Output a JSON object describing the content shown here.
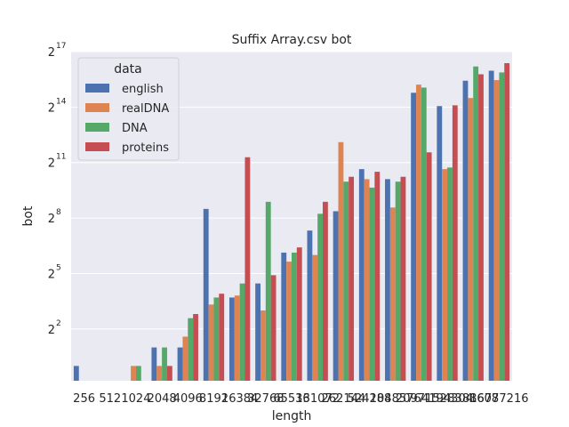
{
  "chart_data": {
    "type": "bar",
    "title": "Suffix Array.csv bot",
    "xlabel": "length",
    "ylabel": "bot",
    "yscale": "log2",
    "ylim_log2": [
      -0.8,
      17
    ],
    "yticks": [
      {
        "base": "2",
        "exp": "2",
        "value": 4
      },
      {
        "base": "2",
        "exp": "5",
        "value": 32
      },
      {
        "base": "2",
        "exp": "8",
        "value": 256
      },
      {
        "base": "2",
        "exp": "11",
        "value": 2048
      },
      {
        "base": "2",
        "exp": "14",
        "value": 16384
      },
      {
        "base": "2",
        "exp": "17",
        "value": 131072
      }
    ],
    "categories": [
      "256",
      "512",
      "1024",
      "2048",
      "4096",
      "8192",
      "16384",
      "32768",
      "65536",
      "131072",
      "262144",
      "524288",
      "1048576",
      "2097152",
      "4194304",
      "8388608",
      "16777216"
    ],
    "legend": {
      "title": "data",
      "position": "top-left"
    },
    "grid": true,
    "background": "#eaeaf2",
    "series": [
      {
        "name": "english",
        "color": "#4c72b0",
        "values": [
          1,
          null,
          null,
          2,
          2,
          360,
          13,
          22,
          70,
          160,
          330,
          1600,
          1100,
          28000,
          17000,
          44000,
          64000
        ]
      },
      {
        "name": "realDNA",
        "color": "#dd8452",
        "values": [
          null,
          null,
          1,
          1,
          3,
          10,
          14,
          8,
          50,
          64,
          4400,
          1100,
          380,
          38000,
          1600,
          23000,
          45000
        ]
      },
      {
        "name": "DNA",
        "color": "#55a868",
        "values": [
          null,
          null,
          1,
          2,
          6,
          13,
          22,
          470,
          70,
          300,
          1000,
          800,
          1000,
          34000,
          1700,
          75000,
          60000
        ]
      },
      {
        "name": "proteins",
        "color": "#c44e52",
        "values": [
          null,
          null,
          null,
          1,
          7,
          15,
          2500,
          30,
          85,
          470,
          1200,
          1450,
          1200,
          3000,
          17500,
          56000,
          85000
        ]
      }
    ]
  }
}
